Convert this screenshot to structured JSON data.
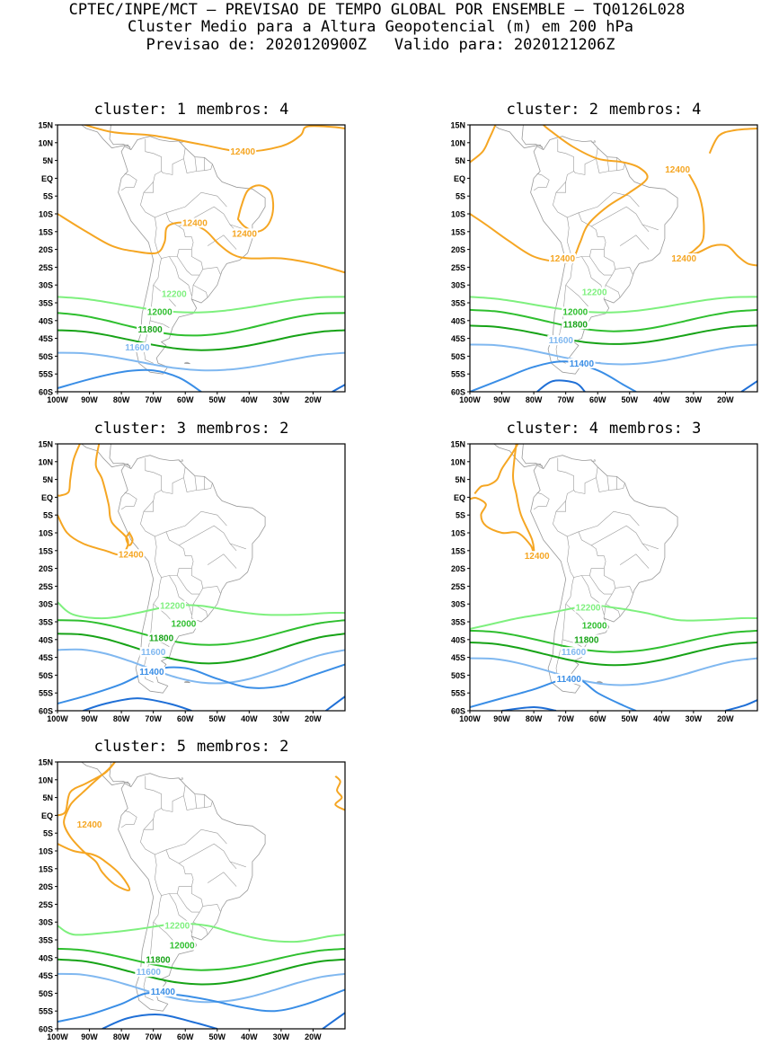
{
  "header": {
    "line1": "CPTEC/INPE/MCT – PREVISAO DE TEMPO GLOBAL POR ENSEMBLE – TQ0126L028",
    "line2": "Cluster Medio para a Altura Geopotencial (m) em 200 hPa",
    "line3_left": "Previsao de: 2020120900Z",
    "line3_right": "Valido para: 2020121206Z"
  },
  "axes": {
    "lat_labels": [
      "15N",
      "10N",
      "5N",
      "EQ",
      "5S",
      "10S",
      "15S",
      "20S",
      "25S",
      "30S",
      "35S",
      "40S",
      "45S",
      "50S",
      "55S",
      "60S"
    ],
    "lon_labels": [
      "100W",
      "90W",
      "80W",
      "70W",
      "60W",
      "50W",
      "40W",
      "30W",
      "20W"
    ],
    "lat_range": [
      -60,
      15
    ],
    "lon_range": [
      -100,
      -10
    ]
  },
  "colors": {
    "c12400": "#f5a623",
    "c12200": "#7ef07e",
    "c12000": "#2fbf2f",
    "c11800": "#17a317",
    "c11600": "#80b8f0",
    "c11400": "#3a8ee6",
    "c11200": "#1f6fd6",
    "coast": "#9a9a9a"
  },
  "panels": [
    {
      "title_cluster": "cluster: 1",
      "title_members": "membros: 4",
      "contour_labels": [
        {
          "value": "12400",
          "lon": -42,
          "lat": 7.5,
          "color": "c12400"
        },
        {
          "value": "12400",
          "lon": -57,
          "lat": -12.5,
          "color": "c12400"
        },
        {
          "value": "12400",
          "lon": -41.5,
          "lat": -15.5,
          "color": "c12400"
        },
        {
          "value": "12200",
          "lon": -63.5,
          "lat": -32.5,
          "color": "c12200"
        },
        {
          "value": "12000",
          "lon": -68,
          "lat": -37.5,
          "color": "c12000"
        },
        {
          "value": "11800",
          "lon": -71,
          "lat": -42.5,
          "color": "c11800"
        },
        {
          "value": "11600",
          "lon": -75,
          "lat": -47.5,
          "color": "c11600"
        }
      ]
    },
    {
      "title_cluster": "cluster: 2",
      "title_members": "membros: 4",
      "contour_labels": [
        {
          "value": "12400",
          "lon": -35,
          "lat": 2.5,
          "color": "c12400"
        },
        {
          "value": "12400",
          "lon": -71,
          "lat": -22.5,
          "color": "c12400"
        },
        {
          "value": "12400",
          "lon": -33,
          "lat": -22.5,
          "color": "c12400"
        },
        {
          "value": "12200",
          "lon": -61,
          "lat": -32,
          "color": "c12200"
        },
        {
          "value": "12000",
          "lon": -67,
          "lat": -37.5,
          "color": "c12000"
        },
        {
          "value": "11800",
          "lon": -67,
          "lat": -41,
          "color": "c11800"
        },
        {
          "value": "11600",
          "lon": -71.5,
          "lat": -45.5,
          "color": "c11600"
        },
        {
          "value": "11400",
          "lon": -65,
          "lat": -52,
          "color": "c11400"
        }
      ]
    },
    {
      "title_cluster": "cluster: 3",
      "title_members": "membros: 2",
      "contour_labels": [
        {
          "value": "12400",
          "lon": -77,
          "lat": -16,
          "color": "c12400"
        },
        {
          "value": "12200",
          "lon": -64,
          "lat": -30.5,
          "color": "c12200"
        },
        {
          "value": "12000",
          "lon": -60.5,
          "lat": -35.5,
          "color": "c12000"
        },
        {
          "value": "11800",
          "lon": -67.5,
          "lat": -39.5,
          "color": "c11800"
        },
        {
          "value": "11600",
          "lon": -70,
          "lat": -43.5,
          "color": "c11600"
        },
        {
          "value": "11400",
          "lon": -70.5,
          "lat": -49,
          "color": "c11400"
        }
      ]
    },
    {
      "title_cluster": "cluster: 4",
      "title_members": "membros: 3",
      "contour_labels": [
        {
          "value": "12400",
          "lon": -79,
          "lat": -16.5,
          "color": "c12400"
        },
        {
          "value": "12200",
          "lon": -63,
          "lat": -31,
          "color": "c12200"
        },
        {
          "value": "12000",
          "lon": -61,
          "lat": -36,
          "color": "c12000"
        },
        {
          "value": "11800",
          "lon": -63.5,
          "lat": -40,
          "color": "c11800"
        },
        {
          "value": "11600",
          "lon": -67.5,
          "lat": -43.5,
          "color": "c11600"
        },
        {
          "value": "11400",
          "lon": -69,
          "lat": -51,
          "color": "c11400"
        }
      ]
    },
    {
      "title_cluster": "cluster: 5",
      "title_members": "membros: 2",
      "contour_labels": [
        {
          "value": "12400",
          "lon": -90,
          "lat": -2.5,
          "color": "c12400"
        },
        {
          "value": "12200",
          "lon": -62.5,
          "lat": -31,
          "color": "c12200"
        },
        {
          "value": "12000",
          "lon": -61,
          "lat": -36.5,
          "color": "c12000"
        },
        {
          "value": "11800",
          "lon": -68.5,
          "lat": -40.5,
          "color": "c11800"
        },
        {
          "value": "11600",
          "lon": -71.5,
          "lat": -44,
          "color": "c11600"
        },
        {
          "value": "11400",
          "lon": -67,
          "lat": -49.5,
          "color": "c11400"
        }
      ]
    }
  ]
}
